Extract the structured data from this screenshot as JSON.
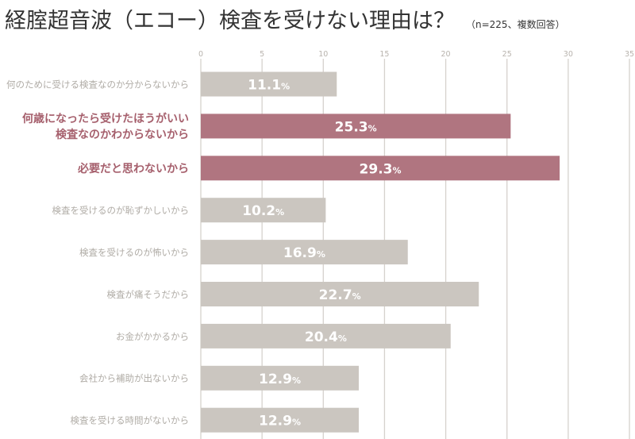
{
  "chart_data": {
    "type": "bar",
    "orientation": "horizontal",
    "title": "経腟超音波（エコー）検査を受けない理由は？",
    "subtitle": "（n=225、複数回答）",
    "xlim": [
      0,
      35
    ],
    "ticks": [
      0,
      5,
      10,
      15,
      20,
      25,
      30,
      35
    ],
    "grid": true,
    "value_suffix": "%",
    "categories": [
      [
        "何のために受ける検査なのか分からないから"
      ],
      [
        "何歳になったら受けたほうがいい",
        "検査なのかわからないから"
      ],
      [
        "必要だと思わないから"
      ],
      [
        "検査を受けるのが恥ずかしいから"
      ],
      [
        "検査を受けるのが怖いから"
      ],
      [
        "検査が痛そうだから"
      ],
      [
        "お金がかかるから"
      ],
      [
        "会社から補助が出ないから"
      ],
      [
        "検査を受ける時間がないから"
      ]
    ],
    "values": [
      11.1,
      25.3,
      29.3,
      10.2,
      16.9,
      22.7,
      20.4,
      12.9,
      12.9
    ],
    "highlighted": [
      false,
      true,
      true,
      false,
      false,
      false,
      false,
      false,
      false
    ]
  },
  "colors": {
    "bar": "#cbc6c0",
    "highlight": "#b07580",
    "label": "#b0aca6",
    "highlight_label": "#a6606d",
    "grid": "#d6d2cd",
    "tick": "#b8b3ad",
    "value_text": "#ffffff",
    "title": "#333333"
  }
}
